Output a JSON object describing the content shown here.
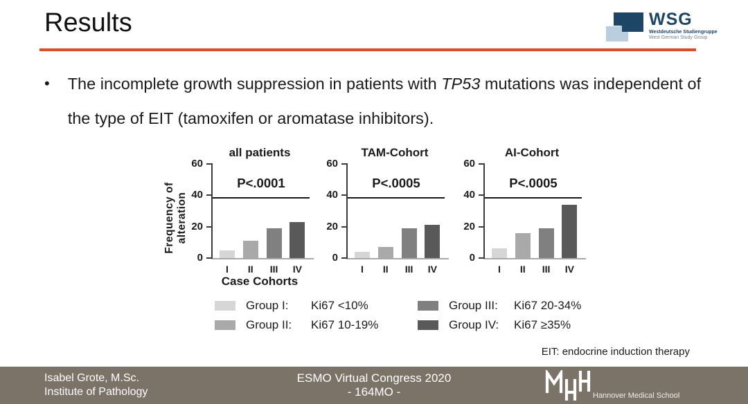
{
  "header": {
    "title": "Results"
  },
  "wsg_logo": {
    "acronym": "WSG",
    "line1": "Westdeutsche Studiengruppe",
    "line2": "West German Study Group"
  },
  "bullet": {
    "text_pre": "The incomplete growth suppression in patients with ",
    "gene": "TP53",
    "text_post": " mutations was independent of the type of EIT (tamoxifen or aromatase inhibitors)."
  },
  "charts_shared": {
    "ylabel": "Frequency of alteration",
    "xlabel": "Case Cohorts",
    "ylim": [
      0,
      60
    ],
    "yticks": [
      0,
      20,
      40,
      60
    ],
    "p_line_value": 39,
    "grid": false
  },
  "chart_data": [
    {
      "type": "bar",
      "title": "all patients",
      "categories": [
        "I",
        "II",
        "III",
        "IV"
      ],
      "values": [
        5,
        11,
        19,
        23
      ],
      "p_label": "P<.0001",
      "ylabel": "Frequency of alteration",
      "xlabel": "Case Cohorts",
      "ylim": [
        0,
        60
      ]
    },
    {
      "type": "bar",
      "title": "TAM-Cohort",
      "categories": [
        "I",
        "II",
        "III",
        "IV"
      ],
      "values": [
        4,
        7,
        19,
        21
      ],
      "p_label": "P<.0005",
      "ylim": [
        0,
        60
      ]
    },
    {
      "type": "bar",
      "title": "AI-Cohort",
      "categories": [
        "I",
        "II",
        "III",
        "IV"
      ],
      "values": [
        6,
        16,
        19,
        34
      ],
      "p_label": "P<.0005",
      "ylim": [
        0,
        60
      ]
    }
  ],
  "legend": {
    "items": [
      {
        "label": "Group  I:",
        "value": "Ki67 <10%",
        "color": "#d6d6d6"
      },
      {
        "label": "Group  II:",
        "value": "Ki67 10-19%",
        "color": "#a9a9a9"
      },
      {
        "label": "Group III:",
        "value": "Ki67 20-34%",
        "color": "#808080"
      },
      {
        "label": "Group IV:",
        "value": "Ki67 ≥35%",
        "color": "#595959"
      }
    ]
  },
  "footnote": "EIT: endocrine induction therapy",
  "footer": {
    "author_line1": "Isabel Grote, M.Sc.",
    "author_line2": "Institute of Pathology",
    "congress_line1": "ESMO Virtual Congress 2020",
    "congress_line2": "- 164MO -",
    "school_name": "Hannover Medical School"
  },
  "colors": {
    "accent_underline": "#e8481c",
    "footer_bg": "#7b7268",
    "wsg_dark": "#1c4566",
    "wsg_light": "#b9cfdf",
    "bar_colors": [
      "#d6d6d6",
      "#a9a9a9",
      "#808080",
      "#595959"
    ],
    "axis": "#3a3a3a"
  }
}
